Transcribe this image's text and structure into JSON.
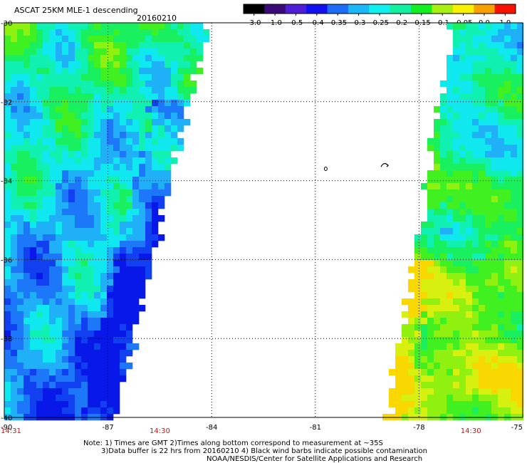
{
  "header": {
    "title": "ASCAT 25KM MLE-1 descending",
    "date": "20160210"
  },
  "colorbar": {
    "labels": [
      "-3.0",
      "-1.0",
      "-0.5",
      "-0.4",
      "-0.35",
      "-0.3",
      "-0.25",
      "-0.2",
      "-0.15",
      "-0.1",
      "-0.05",
      "0.0",
      "1.0"
    ],
    "colors": [
      "#000000",
      "#3a0a78",
      "#4e1ed8",
      "#1010f0",
      "#1c6cf8",
      "#1ab8f8",
      "#10f0f0",
      "#10f0a0",
      "#10f020",
      "#a8f010",
      "#f8f000",
      "#f8a000",
      "#f81000"
    ]
  },
  "map": {
    "lat_labels": [
      "-30",
      "-32",
      "-34",
      "-36",
      "-38",
      "-40"
    ],
    "lon_labels": [
      "-90",
      "-87",
      "-84",
      "-81",
      "-78",
      "-75"
    ],
    "time_labels": [
      {
        "text": "14:31",
        "lon": -90
      },
      {
        "text": "14:30",
        "lon": -85.5
      },
      {
        "text": "14:30",
        "lon": -76.5
      }
    ],
    "lat_range": [
      -40,
      -30
    ],
    "lon_range": [
      -90,
      -75
    ],
    "grid": "dotted"
  },
  "footer": {
    "line1": "Note: 1) Times are GMT 2)Times along bottom correspond to measurement at ~35S",
    "line2": "3)Data buffer is 22 hrs from 20160210 4) Black wind barbs indicate possible contamination",
    "line3": "NOAA/NESDIS/Center for Satellite Applications and Research"
  }
}
